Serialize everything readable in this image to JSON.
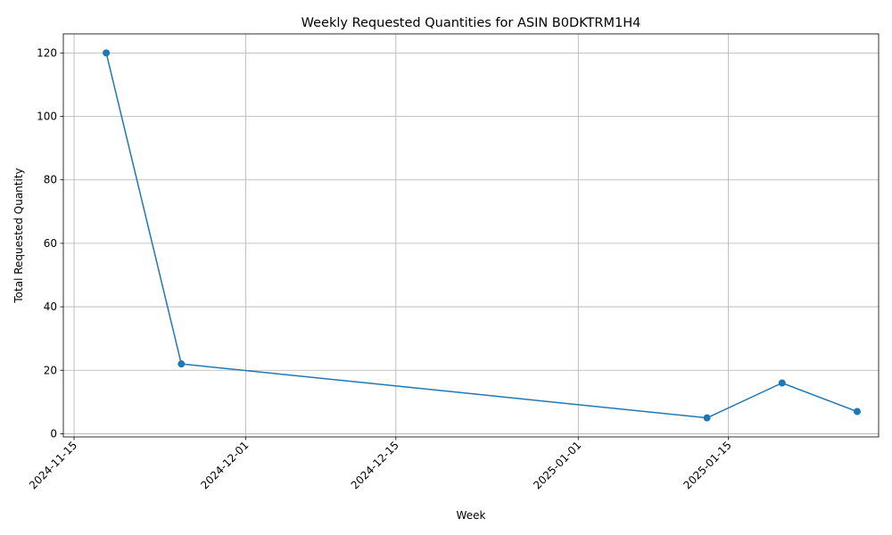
{
  "chart_data": {
    "type": "line",
    "title": "Weekly Requested Quantities for ASIN B0DKTRM1H4",
    "xlabel": "Week",
    "ylabel": "Total Requested Quantity",
    "x_scale": "date",
    "xlim": [
      "2024-11-14",
      "2025-01-29"
    ],
    "ylim": [
      -1,
      126
    ],
    "grid": true,
    "x_ticks": [
      "2024-11-15",
      "2024-12-01",
      "2024-12-15",
      "2025-01-01",
      "2025-01-15"
    ],
    "y_ticks": [
      0,
      20,
      40,
      60,
      80,
      100,
      120
    ],
    "series": [
      {
        "color": "#1f77b4",
        "marker": "circle",
        "x": [
          "2024-11-18",
          "2024-11-25",
          "2025-01-13",
          "2025-01-20",
          "2025-01-27"
        ],
        "y": [
          120,
          22,
          5,
          16,
          7
        ]
      }
    ]
  }
}
